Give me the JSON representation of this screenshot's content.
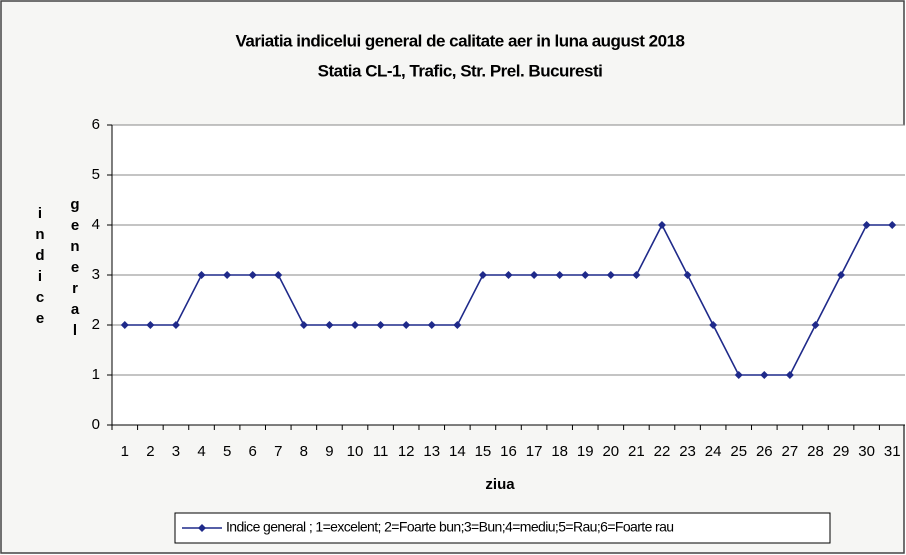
{
  "chart_data": {
    "type": "line",
    "title": "Variatia indicelui general de calitate aer in luna august 2018",
    "subtitle": "Statia CL-1, Trafic, Str. Prel. Bucuresti",
    "xlabel": "ziua",
    "ylabel": [
      "indice",
      "general"
    ],
    "categories": [
      "1",
      "2",
      "3",
      "4",
      "5",
      "6",
      "7",
      "8",
      "9",
      "10",
      "11",
      "12",
      "13",
      "14",
      "15",
      "16",
      "17",
      "18",
      "19",
      "20",
      "21",
      "22",
      "23",
      "24",
      "25",
      "26",
      "27",
      "28",
      "29",
      "30",
      "31"
    ],
    "series": [
      {
        "name": "Indice general ; 1=excelent; 2=Foarte bun;3=Bun;4=mediu;5=Rau;6=Foarte rau",
        "color": "#1f2a8a",
        "values": [
          2,
          2,
          2,
          3,
          3,
          3,
          3,
          2,
          2,
          2,
          2,
          2,
          2,
          2,
          3,
          3,
          3,
          3,
          3,
          3,
          3,
          4,
          3,
          2,
          1,
          1,
          1,
          2,
          3,
          4,
          4
        ]
      }
    ],
    "ylim": [
      0,
      6
    ],
    "yticks": [
      0,
      1,
      2,
      3,
      4,
      5,
      6
    ],
    "grid": true,
    "legend": "bottom"
  }
}
